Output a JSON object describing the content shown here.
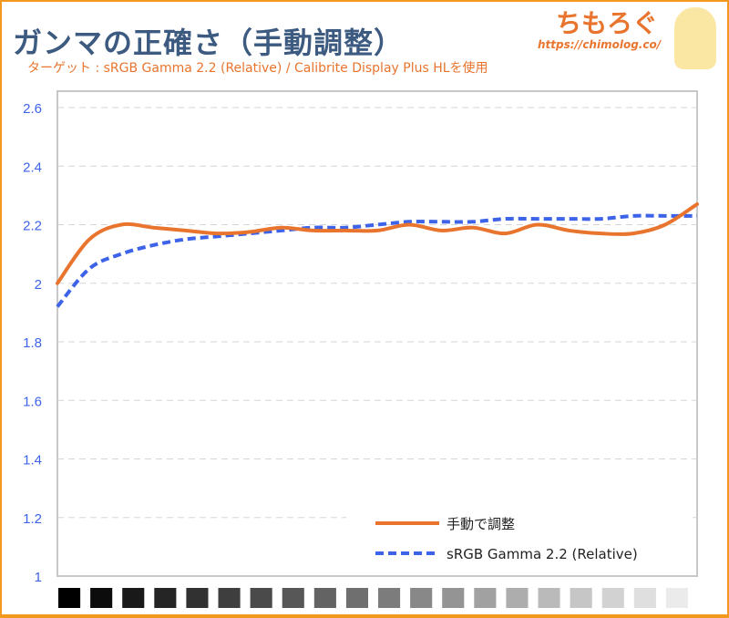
{
  "title": "ガンマの正確さ（手動調整）",
  "subtitle": "ターゲット : sRGB Gamma 2.2 (Relative) / Calibrite Display Plus HLを使用",
  "logo": {
    "text": "ちもろぐ",
    "url": "https://chimolog.co/"
  },
  "chart_data": {
    "type": "line",
    "title": "ガンマの正確さ（手動調整）",
    "xlabel": "",
    "ylabel": "",
    "ylim": [
      1,
      2.6
    ],
    "yticks": [
      "1",
      "1.2",
      "1.4",
      "1.6",
      "1.8",
      "2",
      "2.2",
      "2.4",
      "2.6"
    ],
    "grid": true,
    "legend_position": "bottom-right",
    "x": [
      0,
      5,
      10,
      15,
      20,
      25,
      30,
      35,
      40,
      45,
      50,
      55,
      60,
      65,
      70,
      75,
      80,
      85,
      90,
      95,
      100
    ],
    "series": [
      {
        "name": "手動で調整",
        "color": "#e8742e",
        "style": "solid",
        "values": [
          2.0,
          2.15,
          2.2,
          2.19,
          2.18,
          2.17,
          2.175,
          2.19,
          2.18,
          2.18,
          2.18,
          2.2,
          2.18,
          2.19,
          2.17,
          2.2,
          2.18,
          2.17,
          2.17,
          2.2,
          2.27
        ]
      },
      {
        "name": "sRGB Gamma 2.2 (Relative)",
        "color": "#3d63e8",
        "style": "dashed",
        "values": [
          1.92,
          2.05,
          2.1,
          2.13,
          2.15,
          2.16,
          2.17,
          2.18,
          2.19,
          2.19,
          2.2,
          2.21,
          2.21,
          2.21,
          2.22,
          2.22,
          2.22,
          2.22,
          2.23,
          2.23,
          2.23
        ]
      }
    ],
    "swatch_count": 20
  }
}
